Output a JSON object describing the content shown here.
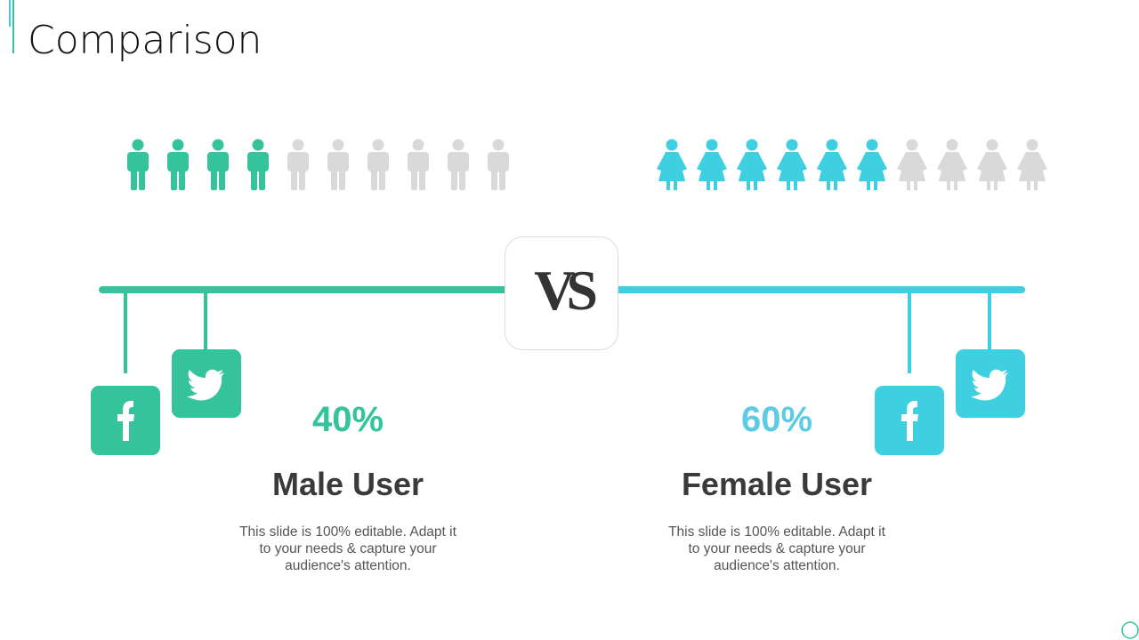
{
  "header": {
    "title": "Comparison"
  },
  "vs": "VS",
  "groups": [
    {
      "percent": "40%",
      "label": "Male User",
      "text": "This slide is 100% editable. Adapt it to your needs & capture your audience's attention.",
      "icons_filled": 4,
      "icons_total": 10,
      "color": "#34c39b",
      "text_color": "#34c39b"
    },
    {
      "percent": "60%",
      "label": "Female User",
      "text": "This slide is 100% editable. Adapt it to your needs & capture your audience's attention.",
      "icons_filled": 6,
      "icons_total": 10,
      "color": "#3ecfe0",
      "text_color": "#5ccbe3"
    }
  ]
}
